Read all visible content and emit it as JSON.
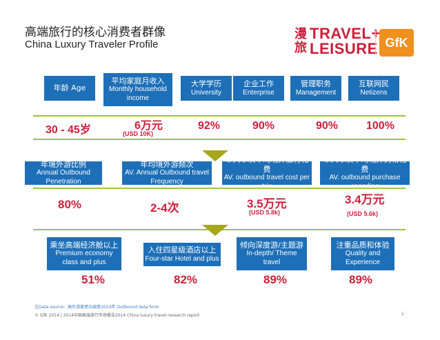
{
  "title": {
    "cn": "高端旅行的核心消费者群像",
    "en": "China Luxury Traveler Profile"
  },
  "logos": {
    "tl_cn_top": "漫",
    "tl_cn_bottom": "旅",
    "tl_word1": "TRAVEL+",
    "tl_word2": "LEISURE",
    "gfk": "GfK"
  },
  "row1": [
    {
      "cn": "年龄 Age",
      "en": "",
      "value": "30 - 45岁",
      "sub": ""
    },
    {
      "cn": "平均家庭月收入",
      "en": "Monthly household income",
      "value": "6万元",
      "sub": "(USD 10K)"
    },
    {
      "cn": "大学学历",
      "en": "University",
      "value": "92%",
      "sub": ""
    },
    {
      "cn": "企业工作",
      "en": "Enterprise",
      "value": "90%",
      "sub": ""
    },
    {
      "cn": "管理职务",
      "en": "Management",
      "value": "90%",
      "sub": ""
    },
    {
      "cn": "互联网民",
      "en": "Netizens",
      "value": "100%",
      "sub": ""
    }
  ],
  "row2": [
    {
      "cn": "年境外游比例",
      "en": "Annual Outbound Penetration",
      "value": "80%",
      "sub": ""
    },
    {
      "cn": "年均境外游频次",
      "en": "AV. Annual Outbound travel Frequency",
      "value": "2-4次",
      "sub": ""
    },
    {
      "cn": "单人单次平均境外旅行花费",
      "en": "AV. outbound travel cost per trip",
      "value": "3.5万元",
      "sub": "(USD 5.8k)"
    },
    {
      "cn": "单人单次平均境外购物花费",
      "en": "AV. outbound purchase spending",
      "value": "3.4万元",
      "sub": "(USD 5.6k)"
    }
  ],
  "row3": [
    {
      "cn": "乘坐高端经济舱以上",
      "en": "Premium economy class and plus",
      "value": "51%"
    },
    {
      "cn": "入住四星级酒店以上",
      "en": "Four-star Hotel and plus",
      "value": "82%"
    },
    {
      "cn": "倾向深度游/主题游",
      "en": "In-depth/ Theme travel",
      "value": "89%"
    },
    {
      "cn": "注重品质和体验",
      "en": "Quality and Experience",
      "value": "89%"
    }
  ],
  "footer": {
    "note": "注Data source：高外游客意向调查2014年 Outbound data form",
    "copyright": "© GfK 2014 | 2014中国高端旅行市场报告2014 China luxury travel research report",
    "page": "1"
  },
  "colors": {
    "header_blue": "#1d6fb7",
    "value_red": "#cc1f3a",
    "band_green": "#9ec33a",
    "chevron_olive": "#a5a81a",
    "gfk_orange": "#f0901e"
  }
}
